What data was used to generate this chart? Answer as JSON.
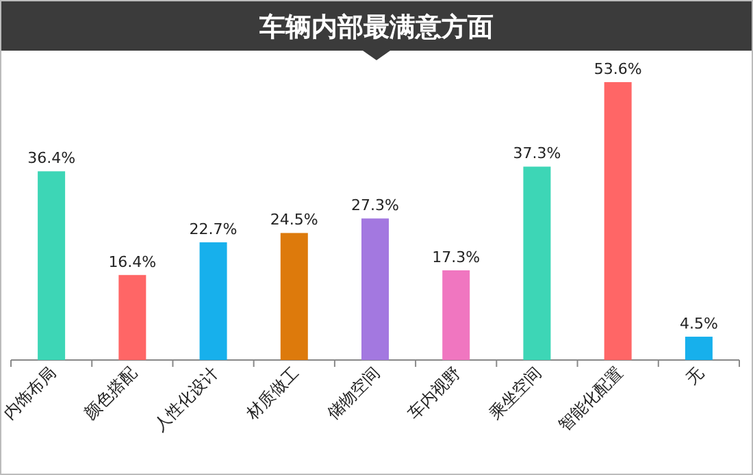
{
  "chart_data": {
    "type": "bar",
    "title": "车辆内部最满意方面",
    "categories": [
      "内饰布局",
      "颜色搭配",
      "人性化设计",
      "材质做工",
      "储物空间",
      "车内视野",
      "乘坐空间",
      "智能化配置",
      "无"
    ],
    "values": [
      36.4,
      16.4,
      22.7,
      24.5,
      27.3,
      17.3,
      37.3,
      53.6,
      4.5
    ],
    "value_labels": [
      "36.4%",
      "16.4%",
      "22.7%",
      "24.5%",
      "27.3%",
      "17.3%",
      "37.3%",
      "53.6%",
      "4.5%"
    ],
    "colors": [
      "#3dd6b6",
      "#ff6666",
      "#17b0ec",
      "#dd7a0c",
      "#a378e0",
      "#f076c0",
      "#3dd6b6",
      "#ff6666",
      "#17b0ec"
    ]
  }
}
